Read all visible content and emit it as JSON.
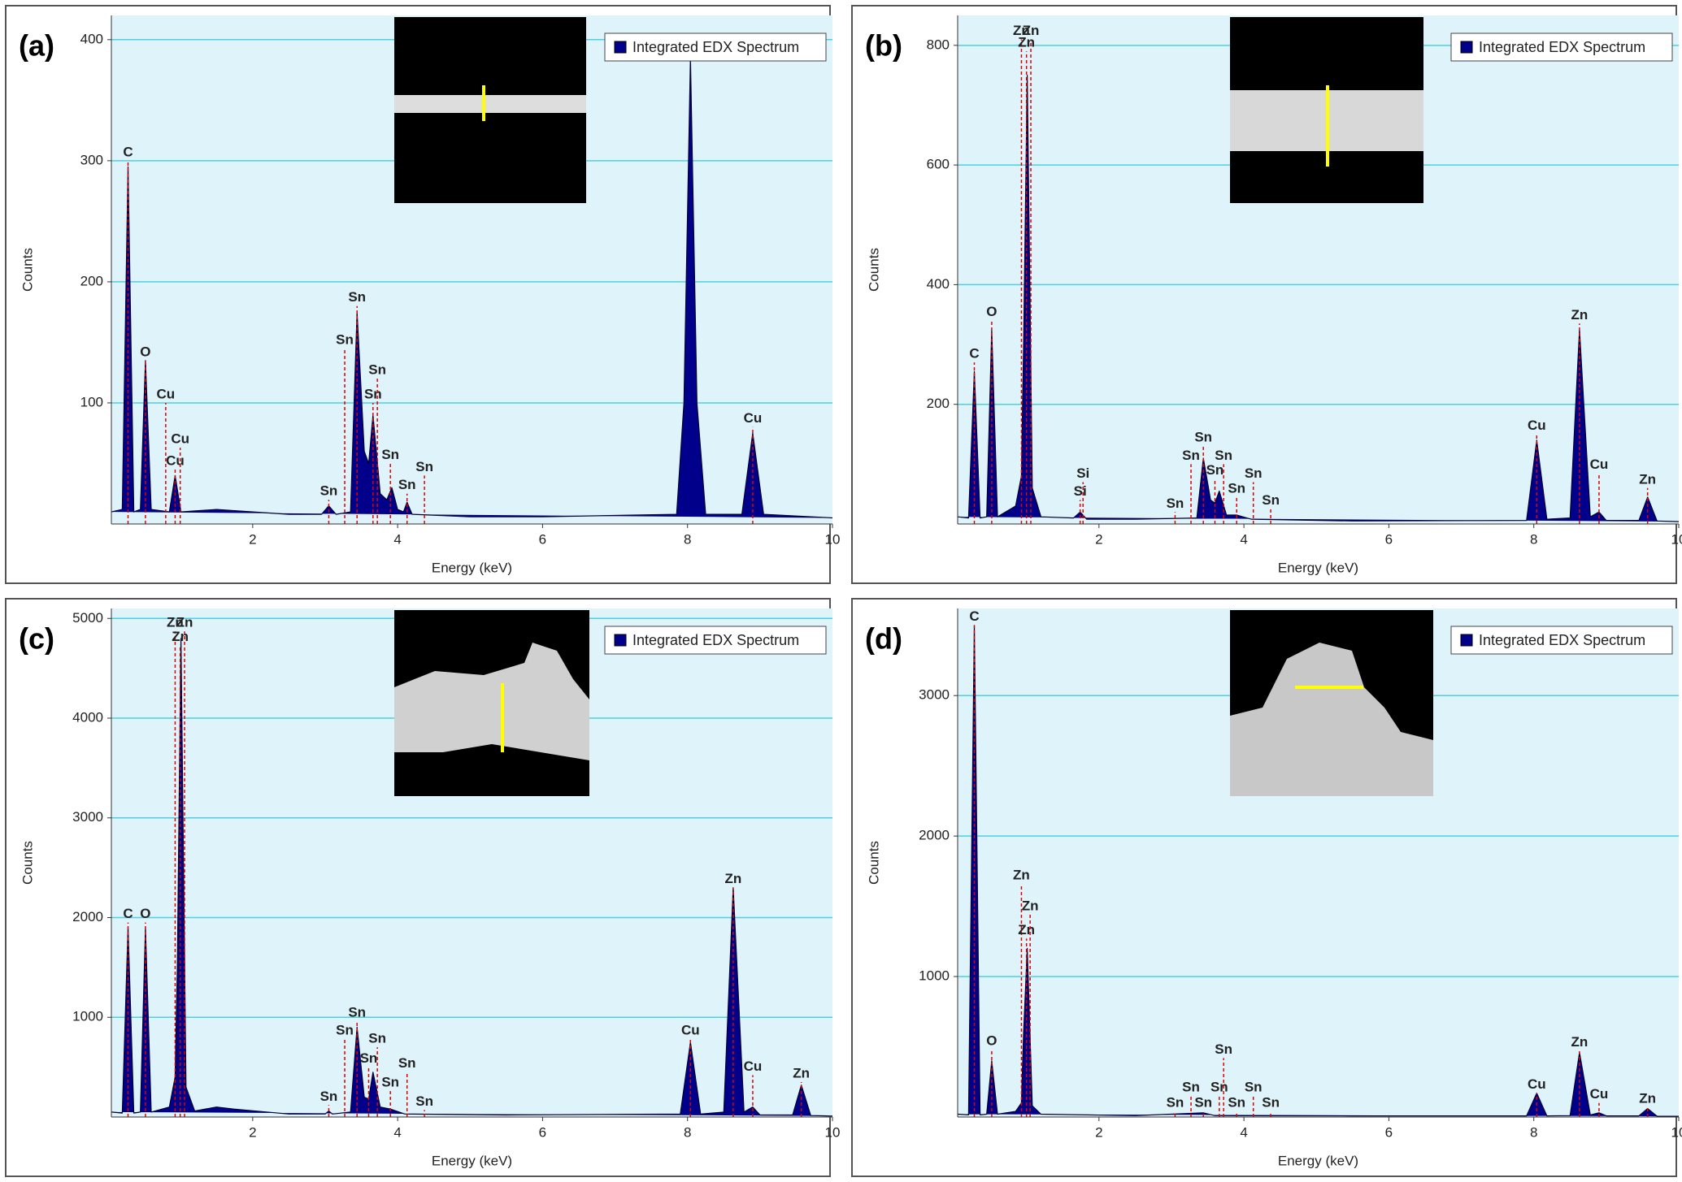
{
  "chart_data": [
    {
      "type": "area",
      "panel_label": "(a)",
      "xlabel": "Energy (keV)",
      "ylabel": "Counts",
      "grid": true,
      "legend": "top-right",
      "xlim": [
        0.05,
        10
      ],
      "xticks": [
        2,
        4,
        6,
        8,
        10
      ],
      "ylim": [
        0,
        420
      ],
      "yticks": [
        100,
        200,
        300,
        400
      ],
      "marker_color": "#e00000",
      "x": [
        0.05,
        0.2,
        0.28,
        0.36,
        0.45,
        0.52,
        0.6,
        0.85,
        0.93,
        1.01,
        1.5,
        2.5,
        2.95,
        3.05,
        3.15,
        3.35,
        3.44,
        3.54,
        3.6,
        3.66,
        3.76,
        3.85,
        3.92,
        4.0,
        4.08,
        4.13,
        4.2,
        5,
        6,
        7.85,
        7.95,
        8.04,
        8.13,
        8.25,
        8.75,
        8.9,
        9.05,
        10
      ],
      "series": [
        {
          "name": "Integrated EDX Spectrum",
          "color": "#00008b",
          "values": [
            10,
            12,
            295,
            10,
            12,
            135,
            12,
            10,
            40,
            10,
            12,
            8,
            8,
            15,
            8,
            10,
            175,
            60,
            50,
            90,
            25,
            20,
            30,
            12,
            10,
            18,
            8,
            6,
            6,
            8,
            100,
            385,
            100,
            8,
            8,
            75,
            8,
            5
          ]
        }
      ],
      "peaks": [
        {
          "label": "C",
          "x": 0.28,
          "y": 300
        },
        {
          "label": "O",
          "x": 0.52,
          "y": 135
        },
        {
          "label": "Cu",
          "x": 0.8,
          "y": 100
        },
        {
          "label": "Cu",
          "x": 0.93,
          "y": 45
        },
        {
          "label": "Cu",
          "x": 1.0,
          "y": 63
        },
        {
          "label": "Sn",
          "x": 3.05,
          "y": 20
        },
        {
          "label": "Sn",
          "x": 3.27,
          "y": 145
        },
        {
          "label": "Sn",
          "x": 3.44,
          "y": 180
        },
        {
          "label": "Sn",
          "x": 3.66,
          "y": 100
        },
        {
          "label": "Sn",
          "x": 3.72,
          "y": 120
        },
        {
          "label": "Sn",
          "x": 3.9,
          "y": 50
        },
        {
          "label": "Sn",
          "x": 4.13,
          "y": 25
        },
        {
          "label": "Sn",
          "x": 4.37,
          "y": 40
        },
        {
          "label": "Cu",
          "x": 8.9,
          "y": 80
        }
      ]
    },
    {
      "type": "area",
      "panel_label": "(b)",
      "xlabel": "Energy (keV)",
      "ylabel": "Counts",
      "grid": true,
      "legend": "top-right",
      "xlim": [
        0.05,
        10
      ],
      "xticks": [
        2,
        4,
        6,
        8,
        10
      ],
      "ylim": [
        0,
        850
      ],
      "yticks": [
        200,
        400,
        600,
        800
      ],
      "marker_color": "#e00000",
      "x": [
        0.05,
        0.2,
        0.28,
        0.36,
        0.45,
        0.52,
        0.6,
        0.85,
        0.93,
        0.96,
        1.01,
        1.08,
        1.2,
        1.65,
        1.74,
        1.83,
        2.5,
        3.35,
        3.44,
        3.54,
        3.6,
        3.66,
        3.76,
        3.9,
        4.1,
        5.5,
        7.9,
        8.04,
        8.18,
        8.5,
        8.63,
        8.78,
        8.9,
        9.0,
        9.45,
        9.57,
        9.7,
        10
      ],
      "series": [
        {
          "name": "Integrated EDX Spectrum",
          "color": "#00008b",
          "values": [
            12,
            10,
            255,
            10,
            12,
            325,
            12,
            30,
            80,
            300,
            750,
            60,
            12,
            10,
            20,
            8,
            8,
            10,
            110,
            40,
            35,
            55,
            15,
            15,
            8,
            5,
            6,
            140,
            8,
            10,
            325,
            12,
            20,
            6,
            6,
            45,
            5,
            4
          ]
        }
      ],
      "peaks": [
        {
          "label": "C",
          "x": 0.28,
          "y": 270
        },
        {
          "label": "O",
          "x": 0.52,
          "y": 340
        },
        {
          "label": "Zn",
          "x": 0.93,
          "y": 810
        },
        {
          "label": "Zn",
          "x": 1.06,
          "y": 810
        },
        {
          "label": "Zn",
          "x": 1.0,
          "y": 790
        },
        {
          "label": "Si",
          "x": 1.74,
          "y": 40
        },
        {
          "label": "Si",
          "x": 1.78,
          "y": 70
        },
        {
          "label": "Sn",
          "x": 3.05,
          "y": 20
        },
        {
          "label": "Sn",
          "x": 3.27,
          "y": 100
        },
        {
          "label": "Sn",
          "x": 3.44,
          "y": 130
        },
        {
          "label": "Sn",
          "x": 3.6,
          "y": 75
        },
        {
          "label": "Sn",
          "x": 3.72,
          "y": 100
        },
        {
          "label": "Sn",
          "x": 3.9,
          "y": 45
        },
        {
          "label": "Sn",
          "x": 4.13,
          "y": 70
        },
        {
          "label": "Sn",
          "x": 4.37,
          "y": 25
        },
        {
          "label": "Cu",
          "x": 8.04,
          "y": 150
        },
        {
          "label": "Zn",
          "x": 8.63,
          "y": 335
        },
        {
          "label": "Cu",
          "x": 8.9,
          "y": 85
        },
        {
          "label": "Zn",
          "x": 9.57,
          "y": 60
        }
      ]
    },
    {
      "type": "area",
      "panel_label": "(c)",
      "xlabel": "Energy (keV)",
      "ylabel": "Counts",
      "grid": true,
      "legend": "top-right",
      "xlim": [
        0.05,
        10
      ],
      "xticks": [
        2,
        4,
        6,
        8,
        10
      ],
      "ylim": [
        0,
        5100
      ],
      "yticks": [
        1000,
        2000,
        3000,
        4000,
        5000
      ],
      "marker_color": "#e00000",
      "x": [
        0.05,
        0.2,
        0.28,
        0.36,
        0.45,
        0.52,
        0.6,
        0.85,
        0.93,
        0.96,
        1.01,
        1.08,
        1.2,
        1.5,
        1.74,
        2.5,
        3.0,
        3.05,
        3.1,
        3.35,
        3.44,
        3.54,
        3.6,
        3.66,
        3.76,
        3.9,
        4.1,
        5.5,
        7.9,
        8.04,
        8.18,
        8.5,
        8.63,
        8.78,
        8.9,
        9.0,
        9.45,
        9.57,
        9.7,
        10
      ],
      "series": [
        {
          "name": "Integrated EDX Spectrum",
          "color": "#00008b",
          "values": [
            50,
            40,
            1900,
            40,
            50,
            1900,
            50,
            100,
            400,
            1500,
            4800,
            300,
            60,
            100,
            80,
            30,
            30,
            60,
            30,
            50,
            900,
            200,
            180,
            450,
            100,
            80,
            30,
            20,
            30,
            750,
            30,
            50,
            2300,
            50,
            100,
            20,
            20,
            320,
            15,
            10
          ]
        }
      ],
      "peaks": [
        {
          "label": "C",
          "x": 0.28,
          "y": 1950
        },
        {
          "label": "O",
          "x": 0.52,
          "y": 1950
        },
        {
          "label": "Zn",
          "x": 0.93,
          "y": 4870
        },
        {
          "label": "Zn",
          "x": 1.06,
          "y": 4870
        },
        {
          "label": "Zn",
          "x": 1.0,
          "y": 4730
        },
        {
          "label": "Sn",
          "x": 3.05,
          "y": 120
        },
        {
          "label": "Sn",
          "x": 3.27,
          "y": 780
        },
        {
          "label": "Sn",
          "x": 3.44,
          "y": 960
        },
        {
          "label": "Sn",
          "x": 3.6,
          "y": 500
        },
        {
          "label": "Sn",
          "x": 3.72,
          "y": 700
        },
        {
          "label": "Sn",
          "x": 3.9,
          "y": 260
        },
        {
          "label": "Sn",
          "x": 4.13,
          "y": 450
        },
        {
          "label": "Sn",
          "x": 4.37,
          "y": 70
        },
        {
          "label": "Cu",
          "x": 8.04,
          "y": 780
        },
        {
          "label": "Zn",
          "x": 8.63,
          "y": 2300
        },
        {
          "label": "Cu",
          "x": 8.9,
          "y": 420
        },
        {
          "label": "Zn",
          "x": 9.57,
          "y": 350
        }
      ]
    },
    {
      "type": "area",
      "panel_label": "(d)",
      "xlabel": "Energy (keV)",
      "ylabel": "Counts",
      "grid": true,
      "legend": "top-right",
      "xlim": [
        0.05,
        10
      ],
      "xticks": [
        2,
        4,
        6,
        8,
        10
      ],
      "ylim": [
        0,
        3620
      ],
      "yticks": [
        1000,
        2000,
        3000
      ],
      "marker_color": "#e00000",
      "x": [
        0.05,
        0.2,
        0.28,
        0.36,
        0.45,
        0.52,
        0.6,
        0.85,
        0.93,
        0.96,
        1.01,
        1.08,
        1.2,
        2.5,
        3.44,
        3.6,
        5.5,
        7.9,
        8.04,
        8.18,
        8.5,
        8.63,
        8.78,
        8.9,
        9.0,
        9.45,
        9.57,
        9.7,
        10
      ],
      "series": [
        {
          "name": "Integrated EDX Spectrum",
          "color": "#00008b",
          "values": [
            20,
            15,
            3500,
            15,
            20,
            400,
            20,
            40,
            100,
            600,
            1200,
            80,
            20,
            10,
            30,
            10,
            8,
            8,
            170,
            8,
            10,
            460,
            15,
            30,
            8,
            8,
            60,
            6,
            5
          ]
        }
      ],
      "peaks": [
        {
          "label": "C",
          "x": 0.28,
          "y": 3500
        },
        {
          "label": "O",
          "x": 0.52,
          "y": 480
        },
        {
          "label": "Zn",
          "x": 0.93,
          "y": 1660
        },
        {
          "label": "Zn",
          "x": 1.0,
          "y": 1270
        },
        {
          "label": "Zn",
          "x": 1.05,
          "y": 1440
        },
        {
          "label": "Sn",
          "x": 3.05,
          "y": 40
        },
        {
          "label": "Sn",
          "x": 3.27,
          "y": 150
        },
        {
          "label": "Sn",
          "x": 3.44,
          "y": 40
        },
        {
          "label": "Sn",
          "x": 3.66,
          "y": 150
        },
        {
          "label": "Sn",
          "x": 3.72,
          "y": 420
        },
        {
          "label": "Sn",
          "x": 3.9,
          "y": 40
        },
        {
          "label": "Sn",
          "x": 4.13,
          "y": 150
        },
        {
          "label": "Sn",
          "x": 4.37,
          "y": 40
        },
        {
          "label": "Cu",
          "x": 8.04,
          "y": 170
        },
        {
          "label": "Zn",
          "x": 8.63,
          "y": 470
        },
        {
          "label": "Cu",
          "x": 8.9,
          "y": 100
        },
        {
          "label": "Zn",
          "x": 9.57,
          "y": 70
        }
      ]
    }
  ]
}
